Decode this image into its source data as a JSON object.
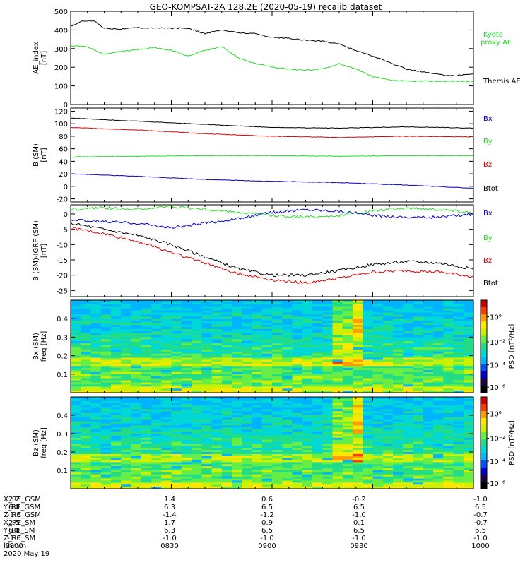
{
  "figure": {
    "title": "GEO-KOMPSAT-2A 128.2E (2020-05-19) recalib dataset",
    "time_ticks": [
      "0800",
      "0830",
      "0900",
      "0930",
      "1000"
    ],
    "date_label": "2020 May 19"
  },
  "orbit_table": {
    "rows": [
      {
        "label": "X_RE_GSM",
        "values": [
          "2.2",
          "1.4",
          "0.6",
          "-0.2",
          "-1.0"
        ]
      },
      {
        "label": "Y_RE_GSM",
        "values": [
          "6.0",
          "6.3",
          "6.5",
          "6.5",
          "6.5"
        ]
      },
      {
        "label": "Z_RE_GSM",
        "values": [
          "-1.6",
          "-1.4",
          "-1.2",
          "-1.0",
          "-0.7"
        ]
      },
      {
        "label": "X_RE_SM",
        "values": [
          "2.5",
          "1.7",
          "0.9",
          "0.1",
          "-0.7"
        ]
      },
      {
        "label": "Y_RE_SM",
        "values": [
          "6.0",
          "6.3",
          "6.5",
          "6.5",
          "6.5"
        ]
      },
      {
        "label": "Z_RE_SM",
        "values": [
          "-1.0",
          "-1.0",
          "-1.0",
          "-1.0",
          "-1.0"
        ]
      },
      {
        "label": "hhmm",
        "values": [
          "0800",
          "0830",
          "0900",
          "0930",
          "1000"
        ]
      }
    ]
  },
  "colors": {
    "black": "#000000",
    "green": "#22dd22",
    "red": "#dd0000",
    "blue": "#0000cc"
  },
  "chart_data": [
    {
      "type": "line",
      "ylabel": "AE_index\n[nT]",
      "ylim": [
        0,
        500
      ],
      "yticks": [
        "0",
        "100",
        "200",
        "300",
        "400",
        "500"
      ],
      "legend": [
        {
          "name": "Kyoto\nproxy AE",
          "color": "green"
        },
        {
          "name": "Themis AE",
          "color": "black"
        }
      ],
      "series": [
        {
          "name": "Themis AE",
          "color": "black",
          "x": [
            0,
            4,
            7,
            10,
            15,
            20,
            25,
            30,
            35,
            40,
            45,
            50,
            55,
            60,
            65,
            70,
            75,
            80,
            85,
            90,
            95,
            100,
            105,
            110,
            115,
            120
          ],
          "y": [
            420,
            450,
            448,
            410,
            405,
            412,
            410,
            410,
            410,
            380,
            400,
            385,
            380,
            360,
            355,
            345,
            340,
            325,
            290,
            260,
            225,
            190,
            175,
            160,
            155,
            165
          ]
        },
        {
          "name": "Kyoto proxy AE",
          "color": "green",
          "x": [
            0,
            5,
            10,
            15,
            20,
            25,
            30,
            35,
            40,
            45,
            50,
            55,
            60,
            65,
            70,
            75,
            80,
            85,
            90,
            95,
            100,
            105,
            110,
            115,
            120
          ],
          "y": [
            315,
            310,
            270,
            285,
            295,
            305,
            290,
            260,
            290,
            310,
            250,
            220,
            200,
            190,
            185,
            190,
            220,
            190,
            150,
            130,
            125,
            125,
            125,
            125,
            125
          ]
        }
      ]
    },
    {
      "type": "line",
      "ylabel": "B (SM)\n[nT]",
      "ylim": [
        -25,
        125
      ],
      "yticks": [
        "-20",
        "0",
        "20",
        "40",
        "60",
        "80",
        "100",
        "120"
      ],
      "legend": [
        {
          "name": "Bx",
          "color": "blue"
        },
        {
          "name": "By",
          "color": "green"
        },
        {
          "name": "Bz",
          "color": "red"
        },
        {
          "name": "Btot",
          "color": "black"
        }
      ],
      "series": [
        {
          "name": "Btot",
          "color": "black",
          "x": [
            0,
            20,
            40,
            60,
            80,
            100,
            120
          ],
          "y": [
            109,
            104,
            99,
            94,
            93,
            95,
            93
          ]
        },
        {
          "name": "Bz",
          "color": "red",
          "x": [
            0,
            20,
            40,
            60,
            80,
            100,
            120
          ],
          "y": [
            94,
            90,
            84,
            80,
            78,
            80,
            79
          ]
        },
        {
          "name": "By",
          "color": "green",
          "x": [
            0,
            20,
            40,
            60,
            80,
            100,
            120
          ],
          "y": [
            47,
            48,
            49,
            49,
            48,
            49,
            49
          ]
        },
        {
          "name": "Bx",
          "color": "blue",
          "x": [
            0,
            20,
            40,
            60,
            80,
            100,
            120
          ],
          "y": [
            20,
            16,
            11,
            8,
            6,
            2,
            -3
          ]
        }
      ]
    },
    {
      "type": "line",
      "ylabel": "B (SM)-IGRF (SM)\n[nT]",
      "ylim": [
        -27,
        3
      ],
      "yticks": [
        "-25",
        "-20",
        "-15",
        "-10",
        "-5",
        "0"
      ],
      "legend": [
        {
          "name": "Bx",
          "color": "blue"
        },
        {
          "name": "By",
          "color": "green"
        },
        {
          "name": "Bz",
          "color": "red"
        },
        {
          "name": "Btot",
          "color": "black"
        }
      ],
      "series": [
        {
          "name": "By",
          "color": "green",
          "x": [
            0,
            10,
            20,
            30,
            40,
            50,
            60,
            70,
            80,
            90,
            100,
            110,
            120
          ],
          "y": [
            1.5,
            2.0,
            1.5,
            2.5,
            1.5,
            0.5,
            -0.5,
            -1.0,
            -0.5,
            1.0,
            2.0,
            1.5,
            0.5
          ]
        },
        {
          "name": "Bx",
          "color": "blue",
          "x": [
            0,
            10,
            20,
            30,
            40,
            50,
            60,
            70,
            80,
            90,
            100,
            110,
            120
          ],
          "y": [
            -2.0,
            -2.5,
            -3.0,
            -4.5,
            -3.0,
            -1.5,
            0.5,
            1.5,
            1.0,
            -0.5,
            -1.0,
            -1.0,
            0
          ]
        },
        {
          "name": "Btot",
          "color": "black",
          "x": [
            0,
            10,
            20,
            30,
            40,
            50,
            60,
            70,
            80,
            90,
            100,
            110,
            120
          ],
          "y": [
            -3.0,
            -5.0,
            -7.0,
            -10.0,
            -14.0,
            -18.0,
            -20.0,
            -20.0,
            -18.5,
            -16.5,
            -15.5,
            -16.0,
            -18.0
          ]
        },
        {
          "name": "Bz",
          "color": "red",
          "x": [
            0,
            10,
            20,
            30,
            40,
            50,
            60,
            70,
            80,
            90,
            100,
            110,
            120
          ],
          "y": [
            -4.5,
            -6.5,
            -9.0,
            -12.5,
            -16.0,
            -19.5,
            -21.5,
            -22.5,
            -21.0,
            -19.0,
            -18.5,
            -19.0,
            -20.5
          ]
        }
      ]
    },
    {
      "type": "heatmap",
      "ylabel": "Bx (SM)\nfreq [Hz]",
      "ylim": [
        0,
        0.5
      ],
      "yticks": [
        "0.1",
        "0.2",
        "0.3",
        "0.4"
      ],
      "colorbar": {
        "label": "PSD [nT²/Hz]",
        "ticks": [
          "10⁰",
          "10⁻²",
          "10⁻⁴",
          "10⁻⁶"
        ]
      }
    },
    {
      "type": "heatmap",
      "ylabel": "Bz (SM)\nfreq [Hz]",
      "ylim": [
        0,
        0.5
      ],
      "yticks": [
        "0.1",
        "0.2",
        "0.3",
        "0.4"
      ],
      "colorbar": {
        "label": "PSD [nT²/Hz]",
        "ticks": [
          "10⁰",
          "10⁻²",
          "10⁻⁴",
          "10⁻⁶"
        ]
      }
    }
  ]
}
